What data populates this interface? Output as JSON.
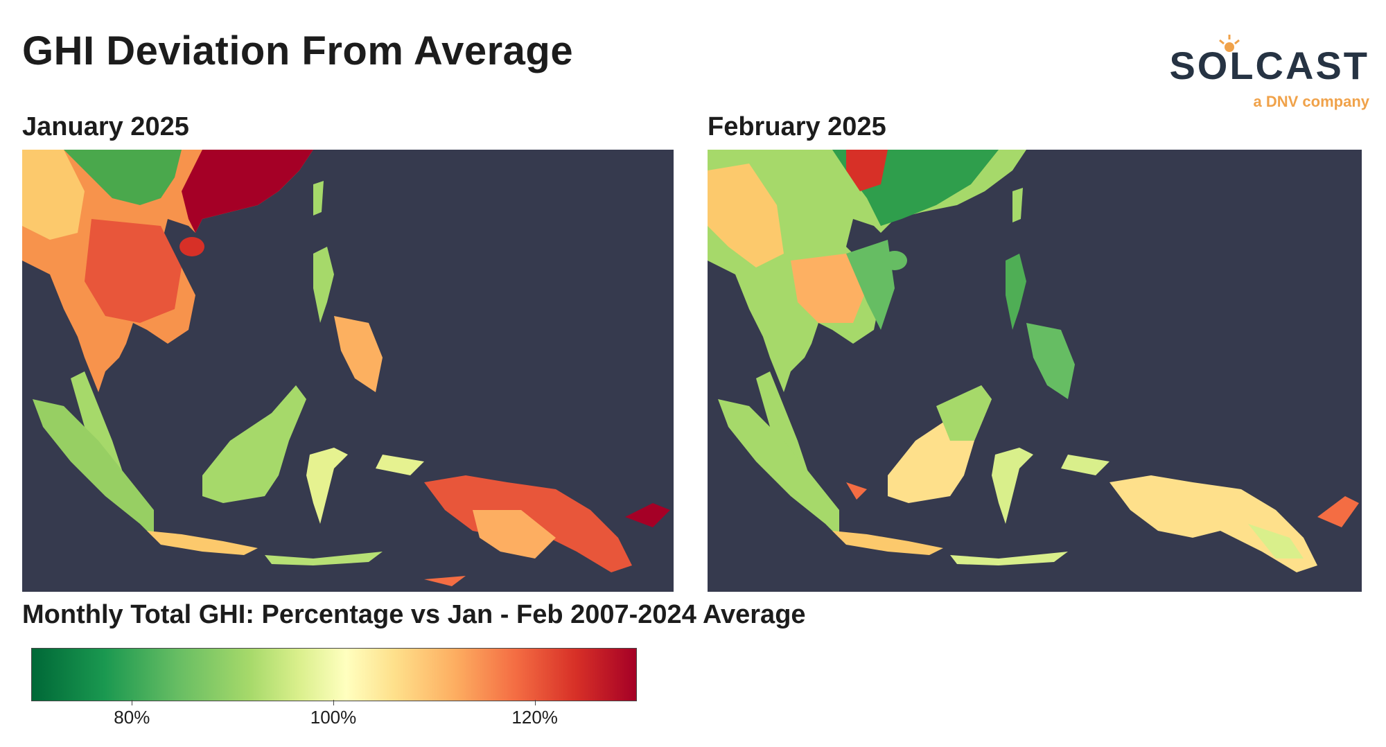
{
  "title": "GHI Deviation From Average",
  "logo": {
    "brand": "SOLCAST",
    "tagline": "a DNV company",
    "brand_color": "#263343",
    "accent_color": "#f0a24a"
  },
  "maps": [
    {
      "label": "January 2025",
      "ocean_color": "#363a4e"
    },
    {
      "label": "February 2025",
      "ocean_color": "#363a4e"
    }
  ],
  "legend": {
    "title": "Monthly Total GHI: Percentage vs Jan - Feb 2007-2024 Average",
    "ticks": [
      "80%",
      "100%",
      "120%"
    ],
    "tick_values": [
      80,
      100,
      120
    ],
    "range": [
      70,
      130
    ],
    "colors": [
      "#006837",
      "#1a9850",
      "#66bd63",
      "#a6d96a",
      "#d9ef8b",
      "#ffffbf",
      "#fee08b",
      "#fdae61",
      "#f46d43",
      "#d73027",
      "#a50026"
    ]
  }
}
